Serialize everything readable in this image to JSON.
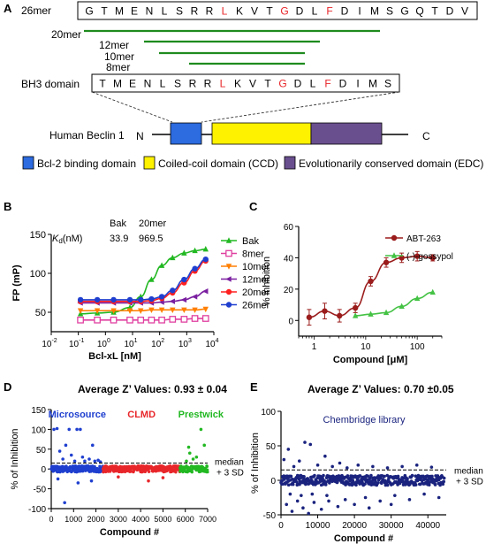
{
  "colors": {
    "red": "#e8262a",
    "green": "#1e8b1e",
    "blue": "#2c6be0",
    "yellow": "#fff200",
    "purple": "#6a4f8f",
    "maroon": "#9b1c1c",
    "navy": "#1a237e"
  },
  "panelA": {
    "label": "A",
    "peptide26": {
      "name": "26mer",
      "residues": [
        "G",
        "T",
        "M",
        "E",
        "N",
        "L",
        "S",
        "R",
        "R",
        "L",
        "K",
        "V",
        "T",
        "G",
        "D",
        "L",
        "F",
        "D",
        "I",
        "M",
        "S",
        "G",
        "Q",
        "T",
        "D",
        "V"
      ],
      "red_positions": [
        9,
        13,
        16
      ]
    },
    "peptide_lines": [
      {
        "name": "20mer",
        "start": 0,
        "end": 19
      },
      {
        "name": "12mer",
        "start": 4,
        "end": 15
      },
      {
        "name": "10mer",
        "start": 5,
        "end": 14
      },
      {
        "name": "8mer",
        "start": 7,
        "end": 14
      }
    ],
    "bh3": {
      "name": "BH3 domain",
      "residues": [
        "T",
        "M",
        "E",
        "N",
        "L",
        "S",
        "R",
        "R",
        "L",
        "K",
        "V",
        "T",
        "G",
        "D",
        "L",
        "F",
        "D",
        "I",
        "M",
        "S"
      ],
      "red_positions": [
        8,
        12,
        15
      ]
    },
    "beclin": {
      "name": "Human Beclin 1",
      "n_label": "N",
      "c_label": "C"
    },
    "legend": [
      {
        "label": "Bcl-2 binding domain",
        "color": "#2c6be0"
      },
      {
        "label": "Coiled-coil domain (CCD)",
        "color": "#fff200"
      },
      {
        "label": "Evolutionarily conserved domain (EDC)",
        "color": "#6a4f8f"
      }
    ]
  },
  "chart_data": [
    {
      "panel": "B",
      "type": "line",
      "xlabel": "Bcl-xL [nM]",
      "ylabel": "FP (mP)",
      "xscale": "log",
      "xlim": [
        0.01,
        10000
      ],
      "ylim": [
        25,
        150
      ],
      "xticks": [
        {
          "v": 0.01,
          "b": "10",
          "e": "-2"
        },
        {
          "v": 0.1,
          "b": "10",
          "e": "-1"
        },
        {
          "v": 1,
          "b": "10",
          "e": "0"
        },
        {
          "v": 10,
          "b": "10",
          "e": "1"
        },
        {
          "v": 100,
          "b": "10",
          "e": "2"
        },
        {
          "v": 1000,
          "b": "10",
          "e": "3"
        },
        {
          "v": 10000,
          "b": "10",
          "e": "4"
        }
      ],
      "yticks": [
        50,
        100,
        150
      ],
      "kd_table": {
        "row_label": "(nM)",
        "row_label_k": "K",
        "row_label_sub": "d",
        "headers": [
          "Bak",
          "20mer"
        ],
        "values": [
          "33.9",
          "969.5"
        ]
      },
      "legend_position": "right",
      "series": [
        {
          "name": "Bak",
          "color": "#22b822",
          "marker": "triangle-up",
          "x": [
            0.12,
            0.5,
            2,
            8,
            20,
            50,
            120,
            300,
            800,
            2000,
            5000
          ],
          "y": [
            48,
            49,
            50,
            56,
            70,
            92,
            110,
            120,
            126,
            129,
            131
          ]
        },
        {
          "name": "8mer",
          "color": "#e040a0",
          "marker": "square-open",
          "x": [
            0.12,
            0.5,
            2,
            8,
            20,
            50,
            120,
            300,
            800,
            2000,
            5000
          ],
          "y": [
            40,
            40,
            40,
            40,
            40,
            40,
            40,
            41,
            41,
            42,
            42
          ]
        },
        {
          "name": "10mer",
          "color": "#ff7f00",
          "marker": "triangle-down",
          "x": [
            0.12,
            0.5,
            2,
            8,
            20,
            50,
            120,
            300,
            800,
            2000,
            5000
          ],
          "y": [
            52,
            52,
            52,
            52,
            52,
            53,
            53,
            53,
            53,
            53,
            54
          ]
        },
        {
          "name": "12mer",
          "color": "#7a1fa0",
          "marker": "triangle-left",
          "x": [
            0.12,
            0.5,
            2,
            8,
            20,
            50,
            120,
            300,
            800,
            2000,
            5000
          ],
          "y": [
            62,
            62,
            62,
            62,
            62,
            62,
            63,
            64,
            66,
            70,
            77
          ]
        },
        {
          "name": "20mer",
          "color": "#ff2020",
          "marker": "circle",
          "x": [
            0.12,
            0.5,
            2,
            8,
            20,
            50,
            120,
            300,
            800,
            2000,
            5000
          ],
          "y": [
            64,
            64,
            64,
            64,
            64,
            65,
            68,
            75,
            88,
            103,
            116
          ]
        },
        {
          "name": "26mer",
          "color": "#1f3fcf",
          "marker": "circle",
          "x": [
            0.12,
            0.5,
            2,
            8,
            20,
            50,
            120,
            300,
            800,
            2000,
            5000
          ],
          "y": [
            66,
            66,
            66,
            66,
            66,
            67,
            70,
            78,
            92,
            106,
            118
          ]
        }
      ]
    },
    {
      "panel": "C",
      "type": "line",
      "xlabel": "Compound [μM]",
      "ylabel": "% inhibition",
      "xscale": "log",
      "xlim": [
        0.5,
        300
      ],
      "ylim": [
        -10,
        60
      ],
      "xticks": [
        {
          "v": 1,
          "label": "1"
        },
        {
          "v": 10,
          "label": "10"
        },
        {
          "v": 100,
          "label": "100"
        }
      ],
      "yticks": [
        0,
        20,
        40,
        60
      ],
      "legend_position": "top-right",
      "series": [
        {
          "name": "ABT-263",
          "color": "#9b1c1c",
          "marker": "circle",
          "x": [
            0.8,
            1.6,
            3.1,
            6.3,
            12.5,
            25,
            50,
            100,
            200
          ],
          "y": [
            2,
            6,
            3,
            8,
            25,
            37,
            40,
            41,
            40
          ],
          "err": [
            5,
            5,
            4,
            3,
            3,
            3,
            3,
            3,
            2
          ]
        },
        {
          "name": "(-)-gossypol",
          "color": "#44c244",
          "marker": "triangle-up",
          "x": [
            6.3,
            12.5,
            25,
            50,
            100,
            200
          ],
          "y": [
            3,
            4,
            5,
            9,
            14,
            18
          ]
        }
      ]
    },
    {
      "panel": "D",
      "type": "scatter",
      "title": "Average Z’ Values: 0.93 ± 0.04",
      "xlabel": "Compound #",
      "ylabel": "% of Inhibition",
      "xlim": [
        0,
        7000
      ],
      "ylim": [
        -100,
        150
      ],
      "xticks": [
        0,
        1000,
        2000,
        3000,
        4000,
        5000,
        6000,
        7000
      ],
      "yticks": [
        -100,
        -50,
        0,
        50,
        100,
        150
      ],
      "threshold": 15,
      "threshold_label": [
        "median",
        "+ 3 SD"
      ],
      "groups": [
        {
          "name": "Microsource",
          "color": "#1f3fcf",
          "range": [
            0,
            2320
          ]
        },
        {
          "name": "CLMD",
          "color": "#e8262a",
          "range": [
            2320,
            5760
          ]
        },
        {
          "name": "Prestwick",
          "color": "#22b822",
          "range": [
            5760,
            7000
          ]
        }
      ],
      "outliers": [
        {
          "x": 120,
          "y": 100,
          "g": 0
        },
        {
          "x": 260,
          "y": 102,
          "g": 0
        },
        {
          "x": 380,
          "y": 45,
          "g": 0
        },
        {
          "x": 520,
          "y": 25,
          "g": 0
        },
        {
          "x": 650,
          "y": 60,
          "g": 0
        },
        {
          "x": 800,
          "y": 100,
          "g": 0
        },
        {
          "x": 900,
          "y": 35,
          "g": 0
        },
        {
          "x": 1050,
          "y": 20,
          "g": 0
        },
        {
          "x": 1150,
          "y": 100,
          "g": 0
        },
        {
          "x": 1300,
          "y": 100,
          "g": 0
        },
        {
          "x": 1400,
          "y": 30,
          "g": 0
        },
        {
          "x": 1500,
          "y": 20,
          "g": 0
        },
        {
          "x": 1700,
          "y": 25,
          "g": 0
        },
        {
          "x": 1850,
          "y": 60,
          "g": 0
        },
        {
          "x": 1950,
          "y": 20,
          "g": 0
        },
        {
          "x": 2100,
          "y": 22,
          "g": 0
        },
        {
          "x": 2200,
          "y": 18,
          "g": 0
        },
        {
          "x": 600,
          "y": -85,
          "g": 0
        },
        {
          "x": 1200,
          "y": -35,
          "g": 0
        },
        {
          "x": 300,
          "y": -25,
          "g": 0
        },
        {
          "x": 1800,
          "y": -30,
          "g": 0
        },
        {
          "x": 4350,
          "y": -30,
          "g": 1
        },
        {
          "x": 3000,
          "y": -20,
          "g": 1
        },
        {
          "x": 5000,
          "y": -22,
          "g": 1
        },
        {
          "x": 6050,
          "y": 20,
          "g": 2
        },
        {
          "x": 6200,
          "y": 40,
          "g": 2
        },
        {
          "x": 6350,
          "y": 25,
          "g": 2
        },
        {
          "x": 6500,
          "y": 30,
          "g": 2
        },
        {
          "x": 6700,
          "y": 100,
          "g": 2
        },
        {
          "x": 6850,
          "y": 60,
          "g": 2
        },
        {
          "x": 6150,
          "y": 55,
          "g": 2
        }
      ]
    },
    {
      "panel": "E",
      "type": "scatter",
      "title": "Average Z’ Values: 0.70 ±0.05",
      "group_label": "Chembridge library",
      "xlabel": "Compound #",
      "ylabel": "% of Inhibition",
      "xlim": [
        0,
        45000
      ],
      "ylim": [
        -50,
        100
      ],
      "xticks": [
        0,
        10000,
        20000,
        30000,
        40000
      ],
      "yticks": [
        -50,
        0,
        50,
        100
      ],
      "threshold": 15,
      "threshold_label": [
        "median",
        "+ 3 SD"
      ],
      "color": "#1a237e",
      "outliers": [
        {
          "x": 800,
          "y": 30
        },
        {
          "x": 2000,
          "y": 45
        },
        {
          "x": 3500,
          "y": 20
        },
        {
          "x": 5000,
          "y": 28
        },
        {
          "x": 6500,
          "y": 55
        },
        {
          "x": 8000,
          "y": 52
        },
        {
          "x": 10000,
          "y": 22
        },
        {
          "x": 12000,
          "y": 35
        },
        {
          "x": 14000,
          "y": 20
        },
        {
          "x": 16000,
          "y": 25
        },
        {
          "x": 18000,
          "y": 18
        },
        {
          "x": 21000,
          "y": 22
        },
        {
          "x": 25000,
          "y": 20
        },
        {
          "x": 29000,
          "y": 18
        },
        {
          "x": 33000,
          "y": 20
        },
        {
          "x": 37000,
          "y": 22
        },
        {
          "x": 41000,
          "y": 19
        },
        {
          "x": 1500,
          "y": -35
        },
        {
          "x": 3000,
          "y": -45
        },
        {
          "x": 4500,
          "y": -30
        },
        {
          "x": 6000,
          "y": -40
        },
        {
          "x": 7500,
          "y": -48
        },
        {
          "x": 9000,
          "y": -32
        },
        {
          "x": 11000,
          "y": -42
        },
        {
          "x": 13000,
          "y": -30
        },
        {
          "x": 15500,
          "y": -38
        },
        {
          "x": 17500,
          "y": -28
        },
        {
          "x": 20000,
          "y": -35
        },
        {
          "x": 23000,
          "y": -25
        },
        {
          "x": 27000,
          "y": -30
        },
        {
          "x": 31000,
          "y": -22
        },
        {
          "x": 35000,
          "y": -28
        },
        {
          "x": 39000,
          "y": -20
        },
        {
          "x": 43000,
          "y": -25
        },
        {
          "x": 2500,
          "y": -20
        },
        {
          "x": 5500,
          "y": -22
        },
        {
          "x": 8500,
          "y": -20
        },
        {
          "x": 12500,
          "y": -22
        },
        {
          "x": 24000,
          "y": -40
        },
        {
          "x": 30000,
          "y": -35
        }
      ]
    }
  ]
}
